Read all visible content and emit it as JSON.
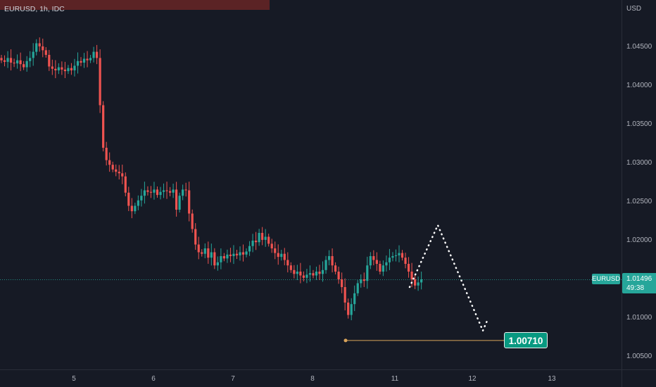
{
  "header": {
    "title": "EURUSD, 1h, IDC"
  },
  "price_axis": {
    "currency": "USD",
    "ticks": [
      "1.04500",
      "1.04000",
      "1.03500",
      "1.03000",
      "1.02500",
      "1.02000",
      "1.01500",
      "1.01000",
      "1.00500"
    ]
  },
  "time_axis": {
    "ticks": [
      "5",
      "6",
      "7",
      "8",
      "11",
      "12",
      "13"
    ]
  },
  "current_price": {
    "symbol": "EURUSD",
    "value": "1.01496",
    "countdown": "49:38"
  },
  "target": {
    "label": "1.00710",
    "value": 1.0071
  },
  "colors": {
    "up": "#26a69a",
    "down": "#ef5350",
    "background": "#161a25",
    "projection": "#ffffff",
    "target_line": "#d8a35a"
  },
  "chart_data": {
    "type": "candlestick",
    "title": "EURUSD, 1h, IDC",
    "ylabel": "USD",
    "ylim": [
      1.0034,
      1.0514
    ],
    "x_tick_labels": [
      "5",
      "6",
      "7",
      "8",
      "11",
      "12",
      "13"
    ],
    "current_price": 1.01496,
    "target_price": 1.0071,
    "closes": [
      1.0433,
      1.0431,
      1.0436,
      1.043,
      1.0429,
      1.0433,
      1.0428,
      1.0424,
      1.0432,
      1.0436,
      1.0444,
      1.0455,
      1.0451,
      1.0446,
      1.044,
      1.0425,
      1.0422,
      1.042,
      1.0424,
      1.0421,
      1.0419,
      1.0423,
      1.042,
      1.0426,
      1.0432,
      1.043,
      1.0435,
      1.0433,
      1.0436,
      1.0444,
      1.0436,
      1.0375,
      1.032,
      1.0304,
      1.0298,
      1.0292,
      1.0289,
      1.0287,
      1.0283,
      1.0262,
      1.0245,
      1.0238,
      1.0245,
      1.0252,
      1.0258,
      1.0265,
      1.0263,
      1.0262,
      1.0266,
      1.0259,
      1.0263,
      1.0265,
      1.0264,
      1.0262,
      1.0266,
      1.024,
      1.0258,
      1.0266,
      1.0265,
      1.0235,
      1.0215,
      1.0195,
      1.0185,
      1.0183,
      1.019,
      1.0178,
      1.0185,
      1.0168,
      1.0172,
      1.018,
      1.0177,
      1.0182,
      1.018,
      1.0183,
      1.0181,
      1.0185,
      1.0182,
      1.0186,
      1.0193,
      1.02,
      1.0198,
      1.021,
      1.0201,
      1.0205,
      1.0196,
      1.019,
      1.0184,
      1.0179,
      1.0183,
      1.0175,
      1.0168,
      1.0162,
      1.0157,
      1.016,
      1.0155,
      1.0152,
      1.0156,
      1.0158,
      1.0155,
      1.016,
      1.0157,
      1.0162,
      1.0175,
      1.018,
      1.0168,
      1.016,
      1.015,
      1.014,
      1.012,
      1.0104,
      1.0118,
      1.0132,
      1.0145,
      1.015,
      1.0148,
      1.0168,
      1.018,
      1.0175,
      1.017,
      1.016,
      1.0168,
      1.0172,
      1.0178,
      1.018,
      1.0181,
      1.0184,
      1.0178,
      1.017,
      1.016,
      1.015,
      1.0142,
      1.0146,
      1.015
    ],
    "projection_path": [
      [
        1.0145,
        1.01496
      ],
      [
        1.0205,
        1.0208
      ],
      [
        1.0295,
        1.0087
      ],
      [
        1.0305,
        1.0096
      ]
    ]
  }
}
